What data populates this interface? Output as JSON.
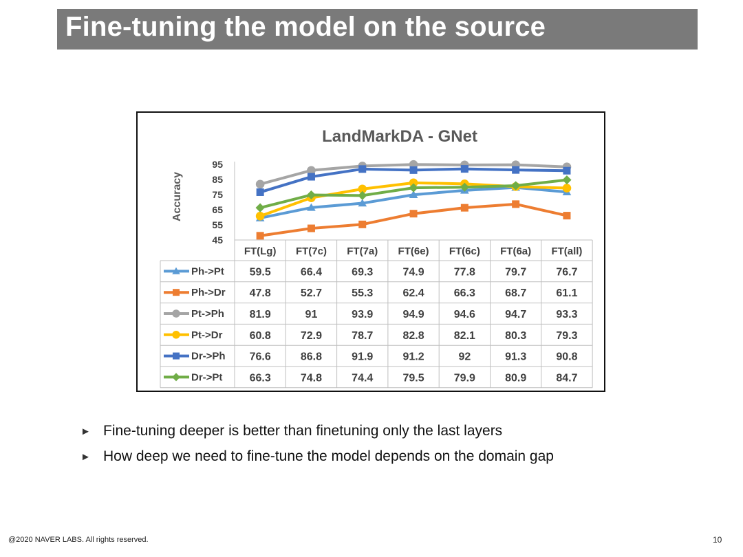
{
  "slide": {
    "title": "Fine-tuning the model on the source",
    "bullets": [
      "Fine-tuning deeper is better than finetuning only the last layers",
      "How deep we need to fine-tune the model depends on the domain gap"
    ],
    "footer": "@2020 NAVER LABS. All rights reserved.",
    "page_number": "10"
  },
  "chart_data": {
    "type": "line",
    "title": "LandMarkDA - GNet",
    "ylabel": "Accuracy",
    "xlabel": "",
    "ylim": [
      45,
      95
    ],
    "yticks": [
      95,
      85,
      75,
      65,
      55,
      45
    ],
    "categories": [
      "FT(Lg)",
      "FT(7c)",
      "FT(7a)",
      "FT(6e)",
      "FT(6c)",
      "FT(6a)",
      "FT(all)"
    ],
    "series": [
      {
        "name": "Ph->Pt",
        "color": "#5b9bd5",
        "marker": "triangle",
        "values": [
          59.5,
          66.4,
          69.3,
          74.9,
          77.8,
          79.7,
          76.7
        ]
      },
      {
        "name": "Ph->Dr",
        "color": "#ed7d31",
        "marker": "square",
        "values": [
          47.8,
          52.7,
          55.3,
          62.4,
          66.3,
          68.7,
          61.1
        ]
      },
      {
        "name": "Pt->Ph",
        "color": "#a5a5a5",
        "marker": "circle",
        "values": [
          81.9,
          91,
          93.9,
          94.9,
          94.6,
          94.7,
          93.3
        ]
      },
      {
        "name": "Pt->Dr",
        "color": "#ffc000",
        "marker": "circle",
        "values": [
          60.8,
          72.9,
          78.7,
          82.8,
          82.1,
          80.3,
          79.3
        ]
      },
      {
        "name": "Dr->Ph",
        "color": "#4472c4",
        "marker": "square",
        "values": [
          76.6,
          86.8,
          91.9,
          91.2,
          92,
          91.3,
          90.8
        ]
      },
      {
        "name": "Dr->Pt",
        "color": "#70ad47",
        "marker": "diamond",
        "values": [
          66.3,
          74.8,
          74.4,
          79.5,
          79.9,
          80.9,
          84.7
        ]
      }
    ],
    "data_table": true
  }
}
